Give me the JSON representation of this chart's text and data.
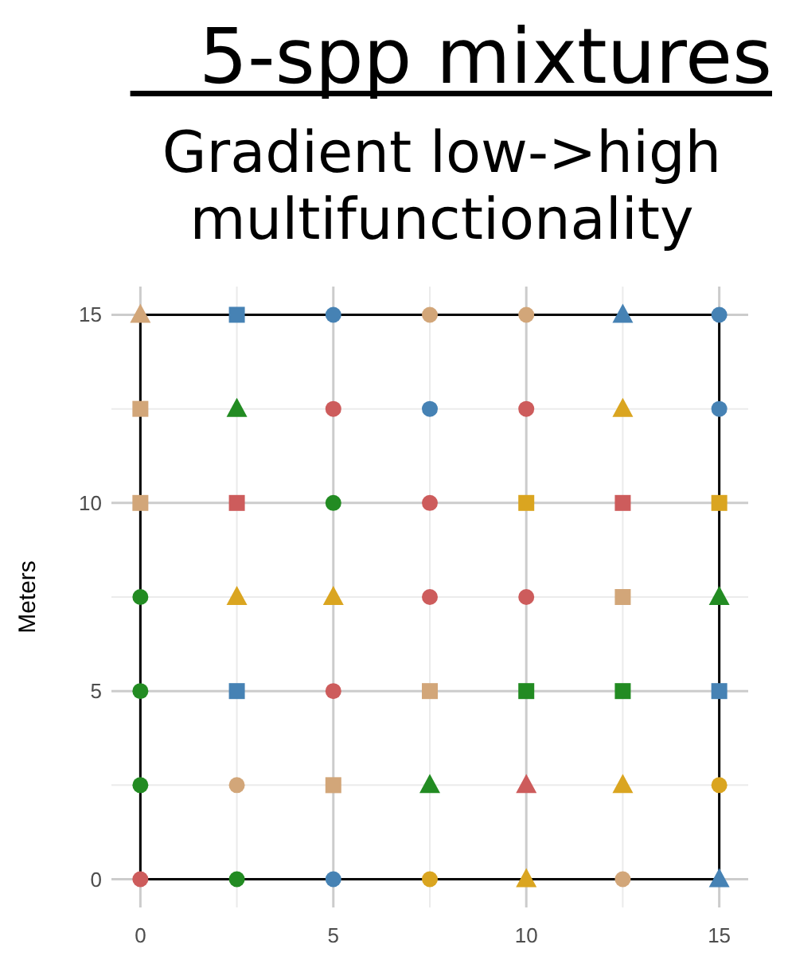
{
  "chart_data": {
    "type": "scatter",
    "title": "5-spp mixtures",
    "subtitle": "Gradient low->high multifunctionality",
    "ylabel": "Meters",
    "xlim": [
      -0.75,
      15.75
    ],
    "ylim": [
      -0.75,
      15.75
    ],
    "xticks": [
      0,
      5,
      10,
      15
    ],
    "yticks": [
      0,
      5,
      10,
      15
    ],
    "grid": true,
    "series": [
      {
        "color": "#4682b4",
        "marker": "circle",
        "x": [
          5,
          15,
          7.5,
          15,
          5
        ],
        "values": [
          15,
          15,
          12.5,
          12.5,
          0
        ]
      },
      {
        "color": "#4682b4",
        "marker": "square",
        "x": [
          2.5,
          2.5,
          15
        ],
        "values": [
          15,
          5,
          5
        ]
      },
      {
        "color": "#4682b4",
        "marker": "triangle",
        "x": [
          12.5,
          15
        ],
        "values": [
          15,
          0
        ]
      },
      {
        "color": "#228b22",
        "marker": "circle",
        "x": [
          5,
          0,
          0,
          0,
          2.5
        ],
        "values": [
          10,
          7.5,
          5,
          2.5,
          0
        ]
      },
      {
        "color": "#228b22",
        "marker": "square",
        "x": [
          10,
          12.5
        ],
        "values": [
          5,
          5
        ]
      },
      {
        "color": "#228b22",
        "marker": "triangle",
        "x": [
          2.5,
          15,
          7.5
        ],
        "values": [
          12.5,
          7.5,
          2.5
        ]
      },
      {
        "color": "#cd5c5c",
        "marker": "circle",
        "x": [
          5,
          10,
          7.5,
          7.5,
          10,
          5,
          0
        ],
        "values": [
          12.5,
          12.5,
          10,
          7.5,
          7.5,
          5,
          0
        ]
      },
      {
        "color": "#cd5c5c",
        "marker": "square",
        "x": [
          2.5,
          12.5
        ],
        "values": [
          10,
          10
        ]
      },
      {
        "color": "#cd5c5c",
        "marker": "triangle",
        "x": [
          10
        ],
        "values": [
          2.5
        ]
      },
      {
        "color": "#d2a679",
        "marker": "circle",
        "x": [
          7.5,
          10,
          2.5,
          12.5
        ],
        "values": [
          15,
          15,
          2.5,
          0
        ]
      },
      {
        "color": "#d2a679",
        "marker": "square",
        "x": [
          0,
          0,
          12.5,
          7.5,
          5
        ],
        "values": [
          12.5,
          10,
          7.5,
          5,
          2.5
        ]
      },
      {
        "color": "#d2a679",
        "marker": "triangle",
        "x": [
          0
        ],
        "values": [
          15
        ]
      },
      {
        "color": "#daa520",
        "marker": "circle",
        "x": [
          15,
          7.5
        ],
        "values": [
          2.5,
          0
        ]
      },
      {
        "color": "#daa520",
        "marker": "square",
        "x": [
          10,
          15
        ],
        "values": [
          10,
          10
        ]
      },
      {
        "color": "#daa520",
        "marker": "triangle",
        "x": [
          12.5,
          2.5,
          5,
          12.5,
          10
        ],
        "values": [
          12.5,
          7.5,
          7.5,
          2.5,
          0
        ]
      }
    ]
  }
}
